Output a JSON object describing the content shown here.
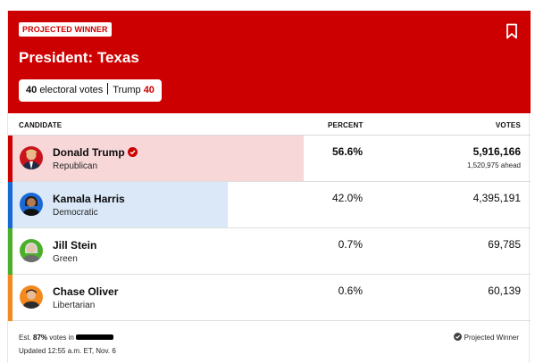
{
  "header": {
    "badge": "PROJECTED WINNER",
    "title": "President: Texas",
    "electoral_votes": "40",
    "electoral_label": "electoral votes",
    "winner_name": "Trump",
    "winner_votes": "40",
    "bookmark_icon": "bookmark-icon"
  },
  "columns": {
    "candidate": "CANDIDATE",
    "percent": "PERCENT",
    "votes": "VOTES"
  },
  "candidates": [
    {
      "name": "Donald Trump",
      "party": "Republican",
      "percent": "56.6%",
      "pct_value": 56.6,
      "votes": "5,916,166",
      "ahead": "1,520,975 ahead",
      "winner": true,
      "stripe": "#cc0000",
      "bar": "#f8d7d9"
    },
    {
      "name": "Kamala Harris",
      "party": "Democratic",
      "percent": "42.0%",
      "pct_value": 42.0,
      "votes": "4,395,191",
      "ahead": "",
      "winner": false,
      "stripe": "#1a6ad6",
      "bar": "#dae8f8"
    },
    {
      "name": "Jill Stein",
      "party": "Green",
      "percent": "0.7%",
      "pct_value": 0.7,
      "votes": "69,785",
      "ahead": "",
      "winner": false,
      "stripe": "#4caf2b",
      "bar": "#e4f2dc"
    },
    {
      "name": "Chase Oliver",
      "party": "Libertarian",
      "percent": "0.6%",
      "pct_value": 0.6,
      "votes": "60,139",
      "ahead": "",
      "winner": false,
      "stripe": "#f48a1f",
      "bar": "#fde8d3"
    }
  ],
  "footer": {
    "est_prefix": "Est.",
    "est_pct": "87%",
    "est_suffix": "votes in",
    "updated": "Updated 12:55 a.m. ET, Nov. 6",
    "legend": "Projected Winner"
  }
}
